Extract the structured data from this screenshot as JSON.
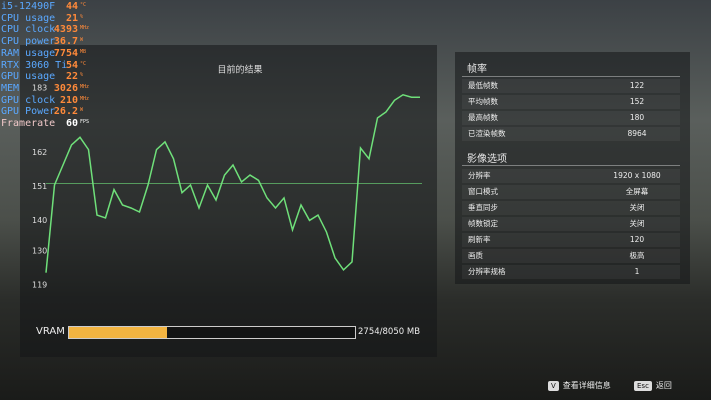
{
  "overlay": [
    {
      "label": "i5-12490F",
      "value": "44",
      "unit": "°C"
    },
    {
      "label": "CPU usage",
      "value": "21",
      "unit": "%"
    },
    {
      "label": "CPU clock",
      "value": "4393",
      "unit": "MHz"
    },
    {
      "label": "CPU  power",
      "value": "36.7",
      "unit": "W"
    },
    {
      "label": "RAM usage",
      "value": "7754",
      "unit": "MB"
    },
    {
      "label": "RTX 3060 Ti",
      "value": "54",
      "unit": "°C"
    },
    {
      "label": "GPU usage",
      "value": "22",
      "unit": "%"
    },
    {
      "label": "MEM",
      "value": "3026",
      "unit": "MHz"
    },
    {
      "label": "GPU clock",
      "value": "210",
      "unit": "MHz"
    },
    {
      "label": "GPU Power",
      "value": "26.2",
      "unit": "W"
    },
    {
      "label": "Framerate",
      "value": "60",
      "unit": "FPS"
    }
  ],
  "graph": {
    "title": "目前的结果",
    "ylim": [
      119,
      183
    ],
    "yticks": [
      183,
      162,
      151,
      140,
      130,
      119
    ],
    "color": "#6fe07a",
    "values": [
      123,
      151.5,
      158,
      164.5,
      167,
      163,
      141.7,
      140.8,
      150,
      145,
      144,
      142.7,
      151.5,
      163,
      165.5,
      160,
      149,
      151.5,
      144,
      151.5,
      146.6,
      154.7,
      158,
      152.5,
      154.7,
      153,
      147.3,
      144,
      147.3,
      136.9,
      145,
      140,
      141.7,
      136.2,
      127.8,
      123.9,
      126.5,
      163.5,
      160,
      173.3,
      175.2,
      179,
      180.8,
      180,
      180
    ]
  },
  "vram": {
    "label": "VRAM",
    "used": 2754,
    "separator": "/",
    "total": 8050,
    "unit": "MB"
  },
  "stats": {
    "title": "帧率",
    "rows": [
      {
        "label": "最低帧数",
        "value": 122
      },
      {
        "label": "平均帧数",
        "value": 152
      },
      {
        "label": "最高帧数",
        "value": 180
      },
      {
        "label": "已渲染帧数",
        "value": 8964
      }
    ]
  },
  "options": {
    "title": "影像选项",
    "rows": [
      {
        "label": "分辨率",
        "value": "1920 x 1080"
      },
      {
        "label": "窗口模式",
        "value": "全屏幕"
      },
      {
        "label": "垂直同步",
        "value": "关闭"
      },
      {
        "label": "帧数锁定",
        "value": "关闭"
      },
      {
        "label": "刷新率",
        "value": "120"
      },
      {
        "label": "画质",
        "value": "极高"
      },
      {
        "label": "分辨率规格",
        "value": "1"
      }
    ]
  },
  "footer": {
    "details_key": "V",
    "details": "查看详细信息",
    "back_key": "Esc",
    "back": "返回"
  }
}
